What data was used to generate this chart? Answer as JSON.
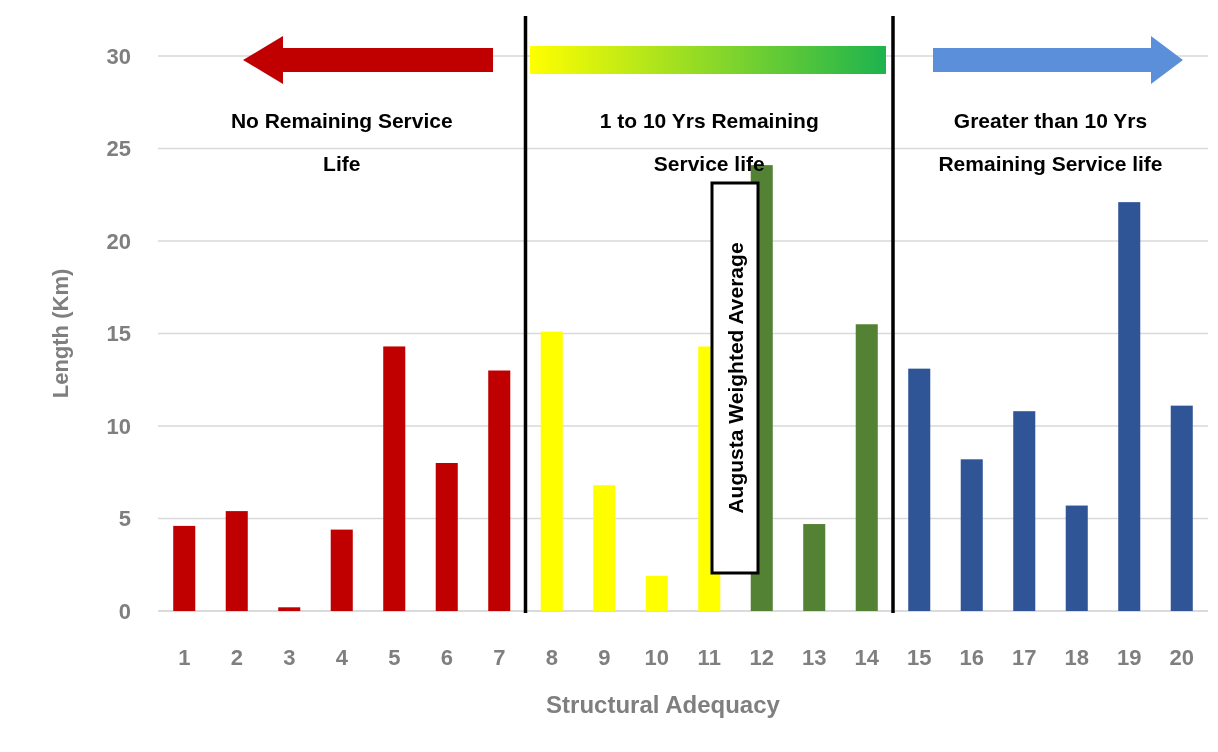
{
  "chart_data": {
    "type": "bar",
    "x": [
      1,
      2,
      3,
      4,
      5,
      6,
      7,
      8,
      9,
      10,
      11,
      12,
      13,
      14,
      15,
      16,
      17,
      18,
      19,
      20
    ],
    "values": [
      4.6,
      5.4,
      0.2,
      4.4,
      14.3,
      8.0,
      13.0,
      15.1,
      6.8,
      1.9,
      14.3,
      24.1,
      4.7,
      15.5,
      13.1,
      8.2,
      10.8,
      5.7,
      22.1,
      11.1
    ],
    "colors": [
      "#c00000",
      "#c00000",
      "#c00000",
      "#c00000",
      "#c00000",
      "#c00000",
      "#c00000",
      "#ffff00",
      "#ffff00",
      "#ffff00",
      "#ffff00",
      "#548235",
      "#548235",
      "#548235",
      "#2f5597",
      "#2f5597",
      "#2f5597",
      "#2f5597",
      "#2f5597",
      "#2f5597"
    ],
    "xlim": [
      0.5,
      20.5
    ],
    "xticks": [
      1,
      2,
      3,
      4,
      5,
      6,
      7,
      8,
      9,
      10,
      11,
      12,
      13,
      14,
      15,
      16,
      17,
      18,
      19,
      20
    ],
    "ylim": [
      0,
      30
    ],
    "yticks": [
      0,
      5,
      10,
      15,
      20,
      25,
      30
    ],
    "xlabel": "Structural Adequacy",
    "ylabel": "Length (Km)",
    "grid": "y",
    "ref_lines": [
      {
        "axis": "x",
        "value": 7.5,
        "color": "#000000"
      },
      {
        "axis": "x",
        "value": 14.5,
        "color": "#000000"
      }
    ],
    "annotations": [
      "No Remaining Service Life",
      "1 to 10 Yrs Remaining Service life",
      "Greater than 10 Yrs Remaining Service life",
      "Augusta Weighted Average"
    ]
  }
}
